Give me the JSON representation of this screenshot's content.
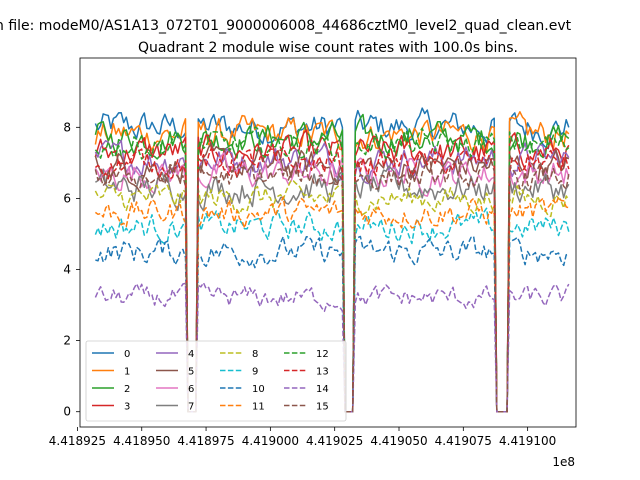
{
  "figure": {
    "suptitle": "n file: modeM0/AS1A13_072T01_9000006008_44686cztM0_level2_quad_clean.evt"
  },
  "chart_data": {
    "type": "line",
    "title": "Quadrant 2 module wise count rates with 100.0s bins.",
    "xlabel": "",
    "ylabel": "",
    "x_offset_label": "1e8",
    "xlim": [
      4.418926,
      4.4191188
    ],
    "ylim": [
      -0.43,
      9.95
    ],
    "x_ticks": [
      4.418925,
      4.41895,
      4.418975,
      4.419,
      4.419025,
      4.41905,
      4.419075,
      4.4191
    ],
    "x_tick_labels": [
      "4.418925",
      "4.418950",
      "4.418975",
      "4.419000",
      "4.419025",
      "4.419050",
      "4.419075",
      "4.419100"
    ],
    "y_ticks": [
      0,
      2,
      4,
      6,
      8
    ],
    "y_tick_labels": [
      "0",
      "2",
      "4",
      "6",
      "8"
    ],
    "grid": false,
    "legend": {
      "placement": "lower-left",
      "columns": 4
    },
    "x_start": 4.418932,
    "x_step": 1e-06,
    "gaps": [
      {
        "start": 4.418968,
        "end": 4.4189717
      },
      {
        "start": 4.4190283,
        "end": 4.4190327
      },
      {
        "start": 4.419088,
        "end": 4.4190927
      }
    ],
    "x_end": 4.4191165,
    "series": [
      {
        "name": "0",
        "color": "#1f77b4",
        "dash": "solid",
        "level": 8.0,
        "noise": 0.35
      },
      {
        "name": "1",
        "color": "#ff7f0e",
        "dash": "solid",
        "level": 7.8,
        "noise": 0.35
      },
      {
        "name": "2",
        "color": "#2ca02c",
        "dash": "solid",
        "level": 7.7,
        "noise": 0.35
      },
      {
        "name": "3",
        "color": "#d62728",
        "dash": "solid",
        "level": 7.3,
        "noise": 0.35
      },
      {
        "name": "4",
        "color": "#9467bd",
        "dash": "solid",
        "level": 7.1,
        "noise": 0.35
      },
      {
        "name": "5",
        "color": "#8c564b",
        "dash": "solid",
        "level": 6.9,
        "noise": 0.35
      },
      {
        "name": "6",
        "color": "#e377c2",
        "dash": "solid",
        "level": 6.7,
        "noise": 0.35
      },
      {
        "name": "7",
        "color": "#7f7f7f",
        "dash": "solid",
        "level": 6.3,
        "noise": 0.35
      },
      {
        "name": "8",
        "color": "#bcbd22",
        "dash": "dashed",
        "level": 6.0,
        "noise": 0.3
      },
      {
        "name": "9",
        "color": "#17becf",
        "dash": "dashed",
        "level": 5.2,
        "noise": 0.3
      },
      {
        "name": "10",
        "color": "#1f77b4",
        "dash": "dashed",
        "level": 4.5,
        "noise": 0.3
      },
      {
        "name": "11",
        "color": "#ff7f0e",
        "dash": "dashed",
        "level": 5.6,
        "noise": 0.3
      },
      {
        "name": "12",
        "color": "#2ca02c",
        "dash": "dashed",
        "level": 7.5,
        "noise": 0.3
      },
      {
        "name": "13",
        "color": "#d62728",
        "dash": "dashed",
        "level": 7.0,
        "noise": 0.3
      },
      {
        "name": "14",
        "color": "#9467bd",
        "dash": "dashed",
        "level": 3.2,
        "noise": 0.25
      },
      {
        "name": "15",
        "color": "#8c564b",
        "dash": "dashed",
        "level": 6.6,
        "noise": 0.3
      }
    ]
  }
}
